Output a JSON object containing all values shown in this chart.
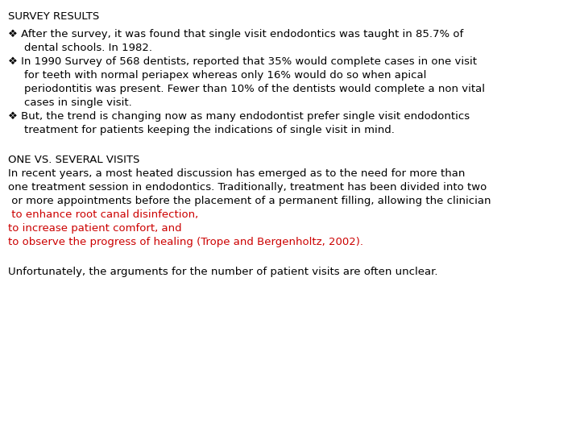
{
  "background_color": "#ffffff",
  "title": "SURVEY RESULTS",
  "title_color": "#000000",
  "title_fontsize": 9.5,
  "bullet_symbol": "❖",
  "bullet_items": [
    {
      "lines": [
        "After the survey, it was found that single visit endodontics was taught in 85.7% of",
        "dental schools. In 1982."
      ],
      "color": "#000000"
    },
    {
      "lines": [
        " In 1990 Survey of 568 dentists, reported that 35% would complete cases in one visit",
        "for teeth with normal periapex whereas only 16% would do so when apical",
        "periodontitis was present. Fewer than 10% of the dentists would complete a non vital",
        "cases in single visit."
      ],
      "color": "#000000"
    },
    {
      "lines": [
        " But, the trend is changing now as many endodontist prefer single visit endodontics",
        "treatment for patients keeping the indications of single visit in mind."
      ],
      "color": "#000000"
    }
  ],
  "section2_title": "ONE VS. SEVERAL VISITS",
  "section2_title_color": "#000000",
  "section2_title_fontsize": 9.5,
  "section2_body_lines": [
    {
      "text": "In recent years, a most heated discussion has emerged as to the need for more than",
      "color": "#000000"
    },
    {
      "text": "one treatment session in endodontics. Traditionally, treatment has been divided into two",
      "color": "#000000"
    },
    {
      "text": " or more appointments before the placement of a permanent filling, allowing the clinician",
      "color": "#000000"
    },
    {
      "text": " to enhance root canal disinfection,",
      "color": "#cc0000"
    },
    {
      "text": "to increase patient comfort, and",
      "color": "#cc0000"
    },
    {
      "text": "to observe the progress of healing (Trope and Bergenholtz, 2002).",
      "color": "#cc0000"
    }
  ],
  "final_line": "Unfortunately, the arguments for the number of patient visits are often unclear.",
  "final_line_color": "#000000",
  "body_fontsize": 9.5,
  "figsize": [
    7.2,
    5.4
  ],
  "dpi": 100
}
